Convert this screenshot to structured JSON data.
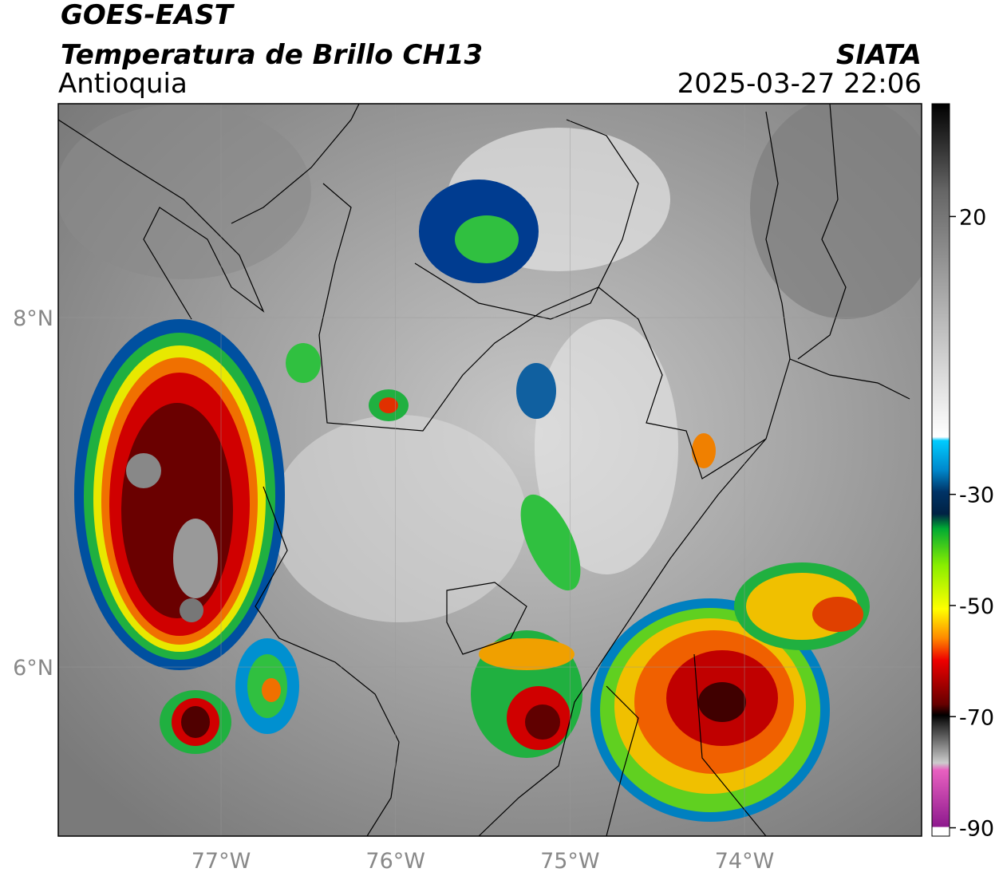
{
  "header": {
    "title": "GOES-EAST",
    "subtitle": "Temperatura de Brillo CH13",
    "region": "Antioquia",
    "source": "SIATA",
    "datetime": "2025-03-27 22:06"
  },
  "map": {
    "xlim": [
      -77.933,
      -72.985
    ],
    "ylim": [
      5.032,
      9.224
    ],
    "xticks": [
      {
        "value": -77,
        "label": "77°W"
      },
      {
        "value": -76,
        "label": "76°W"
      },
      {
        "value": -75,
        "label": "75°W"
      },
      {
        "value": -74,
        "label": "74°W"
      }
    ],
    "yticks": [
      {
        "value": 8,
        "label": "8°N"
      },
      {
        "value": 6,
        "label": "6°N"
      }
    ],
    "grid": true
  },
  "colorbar": {
    "lim": [
      -91.5,
      40.3
    ],
    "ticks": [
      20,
      -30,
      -50,
      -70,
      -90
    ]
  }
}
